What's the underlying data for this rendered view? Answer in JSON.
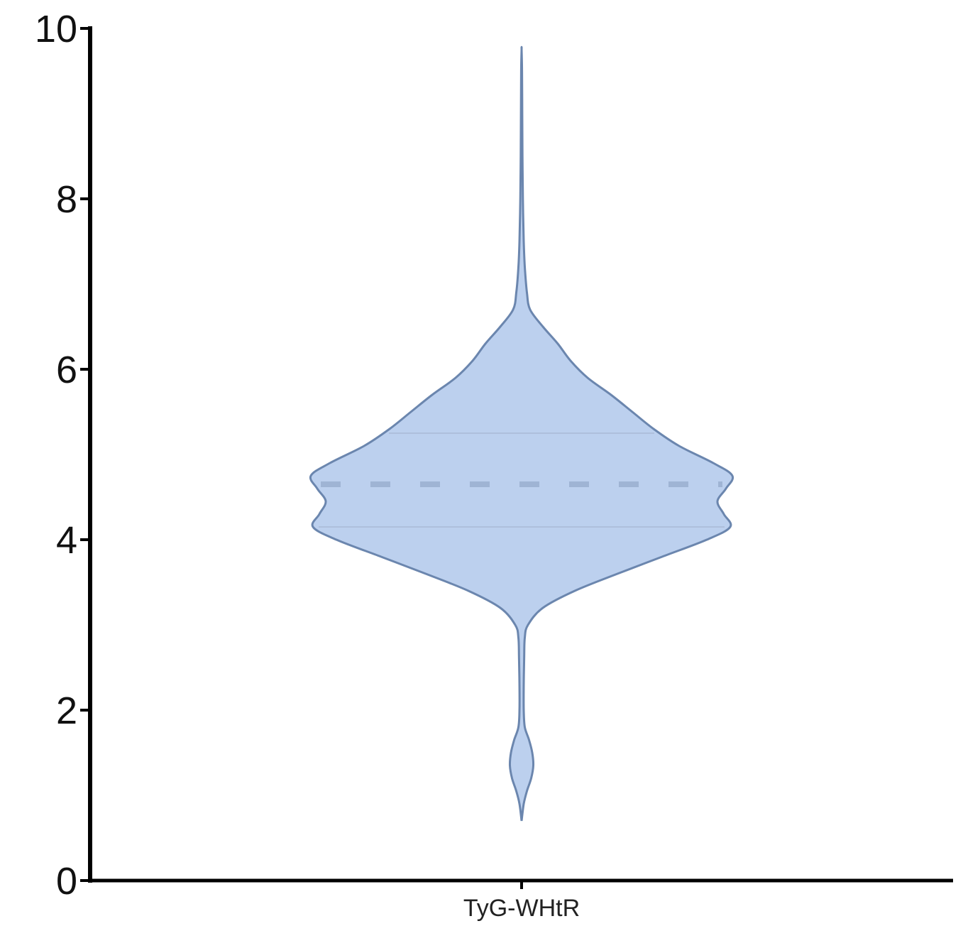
{
  "chart_data": {
    "type": "violin",
    "categories": [
      "TyG-WHtR"
    ],
    "ylim": [
      0,
      10
    ],
    "y_ticks": [
      0,
      2,
      4,
      6,
      8,
      10
    ],
    "y_tick_labels": [
      "0",
      "2",
      "4",
      "6",
      "8",
      "10"
    ],
    "x_tick_labels": [
      "TyG-WHtR"
    ],
    "grid": false,
    "legend": "none",
    "series": [
      {
        "category": "TyG-WHtR",
        "min": 0.7,
        "max": 9.75,
        "median": 4.65,
        "q1": 4.15,
        "q3": 5.25,
        "density_profile": [
          [
            0.7,
            0.0
          ],
          [
            0.9,
            0.01
          ],
          [
            1.05,
            0.025
          ],
          [
            1.2,
            0.045
          ],
          [
            1.35,
            0.055
          ],
          [
            1.5,
            0.05
          ],
          [
            1.65,
            0.035
          ],
          [
            1.8,
            0.015
          ],
          [
            2.0,
            0.01
          ],
          [
            2.3,
            0.01
          ],
          [
            2.6,
            0.012
          ],
          [
            2.85,
            0.015
          ],
          [
            3.0,
            0.03
          ],
          [
            3.2,
            0.1
          ],
          [
            3.4,
            0.25
          ],
          [
            3.6,
            0.45
          ],
          [
            3.8,
            0.66
          ],
          [
            4.0,
            0.87
          ],
          [
            4.15,
            0.98
          ],
          [
            4.3,
            0.95
          ],
          [
            4.45,
            0.92
          ],
          [
            4.6,
            0.96
          ],
          [
            4.75,
            0.99
          ],
          [
            4.9,
            0.9
          ],
          [
            5.1,
            0.74
          ],
          [
            5.3,
            0.62
          ],
          [
            5.5,
            0.52
          ],
          [
            5.7,
            0.42
          ],
          [
            5.9,
            0.31
          ],
          [
            6.1,
            0.23
          ],
          [
            6.3,
            0.17
          ],
          [
            6.5,
            0.1
          ],
          [
            6.7,
            0.04
          ],
          [
            6.9,
            0.025
          ],
          [
            7.2,
            0.015
          ],
          [
            7.5,
            0.01
          ],
          [
            8.0,
            0.006
          ],
          [
            8.5,
            0.004
          ],
          [
            9.0,
            0.003
          ],
          [
            9.5,
            0.002
          ],
          [
            9.75,
            0.0
          ]
        ]
      }
    ],
    "colors": {
      "violin_fill": "#bcd0ee",
      "violin_stroke": "#6b86ae",
      "median_line": "#9fb4d4",
      "quartile_line": "#aebfdc",
      "axis": "#000000"
    }
  }
}
